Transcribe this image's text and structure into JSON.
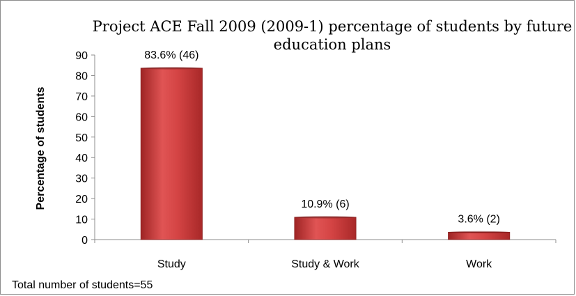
{
  "chart_data": {
    "type": "bar",
    "title_lines": [
      "Project ACE Fall 2009 (2009-1)  percentage of students by future",
      "education plans"
    ],
    "xlabel": "",
    "ylabel": "Percentage of students",
    "categories": [
      "Study",
      "Study & Work",
      "Work"
    ],
    "values": [
      83.6,
      10.9,
      3.6
    ],
    "data_labels": [
      "83.6% (46)",
      "10.9% (6)",
      "3.6% (2)"
    ],
    "ylim": [
      0,
      90
    ],
    "yticks": [
      "0",
      "10",
      "20",
      "30",
      "40",
      "50",
      "60",
      "70",
      "80",
      "90"
    ],
    "grid": false,
    "legend": "none",
    "bar_color": "#c83a3a"
  },
  "footnote": "Total number of students=55"
}
